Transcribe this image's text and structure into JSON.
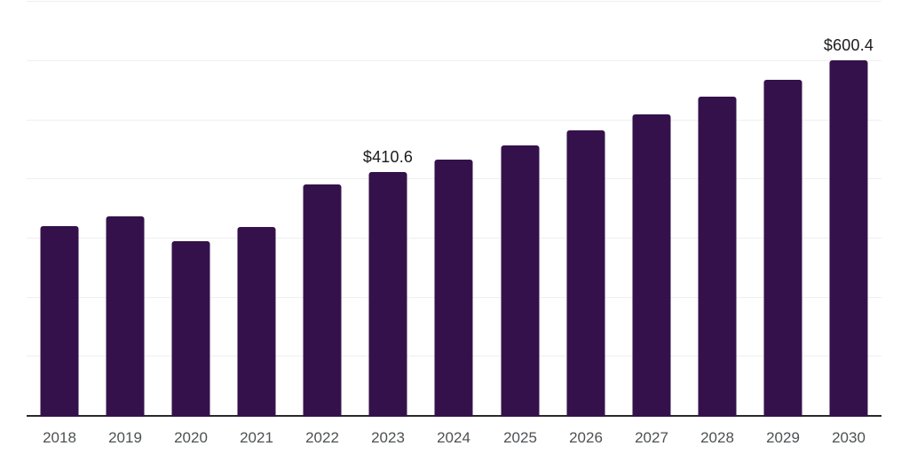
{
  "chart_data": {
    "type": "bar",
    "title": "",
    "xlabel": "",
    "ylabel": "",
    "categories": [
      "2018",
      "2019",
      "2020",
      "2021",
      "2022",
      "2023",
      "2024",
      "2025",
      "2026",
      "2027",
      "2028",
      "2029",
      "2030"
    ],
    "values": [
      320,
      336,
      294,
      318,
      390,
      410.6,
      432,
      456,
      481,
      508,
      538.5,
      567,
      600.4
    ],
    "annotations": [
      {
        "index": 5,
        "text": "$410.6"
      },
      {
        "index": 12,
        "text": "$600.4"
      }
    ],
    "ylim": [
      0,
      760
    ],
    "gridline_values": [
      100,
      200,
      300,
      400,
      500,
      600,
      700
    ],
    "grid": "horizontal",
    "legend_position": "none",
    "bar_color": "#35114b",
    "axis_line_color": "#29292b",
    "gridline_color": "#efeff1",
    "tick_label_color": "#4e5052",
    "annotation_color": "#1b1b1d"
  }
}
